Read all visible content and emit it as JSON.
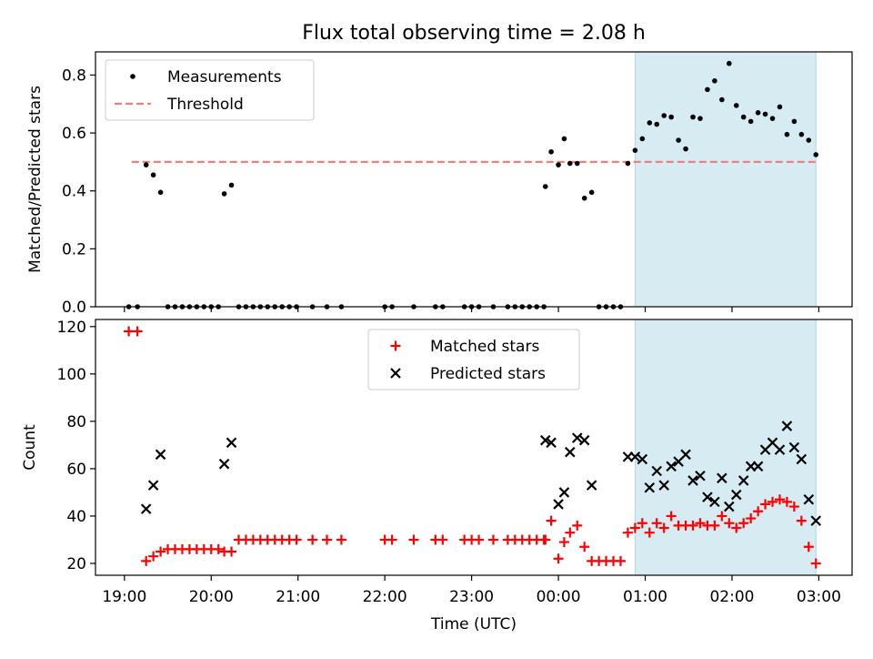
{
  "chart_data": {
    "title": "Flux total observing time = 2.08 h",
    "xlabel": "Time (UTC)",
    "x_ticks": [
      {
        "time": "19:00",
        "label": "19:00"
      },
      {
        "time": "20:00",
        "label": "20:00"
      },
      {
        "time": "21:00",
        "label": "21:00"
      },
      {
        "time": "22:00",
        "label": "22:00"
      },
      {
        "time": "23:00",
        "label": "23:00"
      },
      {
        "time": "00:00",
        "label": "00:00"
      },
      {
        "time": "01:00",
        "label": "01:00"
      },
      {
        "time": "02:00",
        "label": "02:00"
      },
      {
        "time": "03:00",
        "label": "03:00"
      }
    ],
    "xlim": [
      "18:40",
      "03:23"
    ],
    "shaded_interval": {
      "start": "00:53",
      "end": "02:58",
      "color": "#add8e6"
    },
    "panels": [
      {
        "type": "scatter",
        "ylabel": "Matched/Predicted stars",
        "ylim": [
          0,
          0.88
        ],
        "yticks": [
          "0.0",
          "0.2",
          "0.4",
          "0.6",
          "0.8"
        ],
        "legend_position": "upper left",
        "series": [
          {
            "name": "Measurements",
            "marker": "dot",
            "color": "#000000",
            "points": [
              [
                "19:03",
                0
              ],
              [
                "19:09",
                0
              ],
              [
                "19:15",
                0.49
              ],
              [
                "19:20",
                0.455
              ],
              [
                "19:25",
                0.395
              ],
              [
                "19:30",
                0
              ],
              [
                "19:35",
                0
              ],
              [
                "19:40",
                0
              ],
              [
                "19:45",
                0
              ],
              [
                "19:50",
                0
              ],
              [
                "19:55",
                0
              ],
              [
                "20:00",
                0
              ],
              [
                "20:05",
                0
              ],
              [
                "20:09",
                0.39
              ],
              [
                "20:14",
                0.42
              ],
              [
                "20:19",
                0
              ],
              [
                "20:24",
                0
              ],
              [
                "20:29",
                0
              ],
              [
                "20:34",
                0
              ],
              [
                "20:39",
                0
              ],
              [
                "20:44",
                0
              ],
              [
                "20:49",
                0
              ],
              [
                "20:54",
                0
              ],
              [
                "20:59",
                0
              ],
              [
                "21:10",
                0
              ],
              [
                "21:20",
                0
              ],
              [
                "21:30",
                0
              ],
              [
                "22:00",
                0
              ],
              [
                "22:05",
                0
              ],
              [
                "22:20",
                0
              ],
              [
                "22:35",
                0
              ],
              [
                "22:40",
                0
              ],
              [
                "22:55",
                0
              ],
              [
                "23:00",
                0
              ],
              [
                "23:05",
                0
              ],
              [
                "23:15",
                0
              ],
              [
                "23:25",
                0
              ],
              [
                "23:30",
                0
              ],
              [
                "23:35",
                0
              ],
              [
                "23:40",
                0
              ],
              [
                "23:45",
                0
              ],
              [
                "23:50",
                0
              ],
              [
                "23:51",
                0.415
              ],
              [
                "23:55",
                0.535
              ],
              [
                "00:00",
                0.49
              ],
              [
                "00:04",
                0.58
              ],
              [
                "00:08",
                0.495
              ],
              [
                "00:13",
                0.495
              ],
              [
                "00:18",
                0.375
              ],
              [
                "00:23",
                0.395
              ],
              [
                "00:28",
                0
              ],
              [
                "00:33",
                0
              ],
              [
                "00:38",
                0
              ],
              [
                "00:43",
                0
              ],
              [
                "00:48",
                0.495
              ],
              [
                "00:53",
                0.54
              ],
              [
                "00:58",
                0.58
              ],
              [
                "01:03",
                0.635
              ],
              [
                "01:08",
                0.63
              ],
              [
                "01:13",
                0.66
              ],
              [
                "01:18",
                0.655
              ],
              [
                "01:23",
                0.575
              ],
              [
                "01:28",
                0.545
              ],
              [
                "01:33",
                0.655
              ],
              [
                "01:38",
                0.65
              ],
              [
                "01:43",
                0.75
              ],
              [
                "01:48",
                0.78
              ],
              [
                "01:53",
                0.715
              ],
              [
                "01:58",
                0.84
              ],
              [
                "02:03",
                0.695
              ],
              [
                "02:08",
                0.655
              ],
              [
                "02:13",
                0.64
              ],
              [
                "02:18",
                0.67
              ],
              [
                "02:23",
                0.665
              ],
              [
                "02:28",
                0.65
              ],
              [
                "02:33",
                0.69
              ],
              [
                "02:38",
                0.595
              ],
              [
                "02:43",
                0.64
              ],
              [
                "02:48",
                0.595
              ],
              [
                "02:53",
                0.575
              ],
              [
                "02:58",
                0.525
              ]
            ]
          },
          {
            "name": "Threshold",
            "type": "line",
            "style": "dashed",
            "color": "#f08080",
            "x_range": [
              "19:05",
              "02:58"
            ],
            "value": 0.5
          }
        ]
      },
      {
        "type": "scatter",
        "ylabel": "Count",
        "ylim": [
          15,
          123
        ],
        "yticks": [
          "20",
          "40",
          "60",
          "80",
          "100",
          "120"
        ],
        "legend_position": "upper center",
        "series": [
          {
            "name": "Matched stars",
            "marker": "plus",
            "color": "#ff0000",
            "points": [
              [
                "19:03",
                118
              ],
              [
                "19:09",
                118
              ],
              [
                "19:15",
                21
              ],
              [
                "19:20",
                23
              ],
              [
                "19:25",
                25
              ],
              [
                "19:30",
                26
              ],
              [
                "19:35",
                26
              ],
              [
                "19:40",
                26
              ],
              [
                "19:45",
                26
              ],
              [
                "19:50",
                26
              ],
              [
                "19:55",
                26
              ],
              [
                "20:00",
                26
              ],
              [
                "20:05",
                26
              ],
              [
                "20:09",
                25
              ],
              [
                "20:14",
                25
              ],
              [
                "20:19",
                30
              ],
              [
                "20:24",
                30
              ],
              [
                "20:29",
                30
              ],
              [
                "20:34",
                30
              ],
              [
                "20:39",
                30
              ],
              [
                "20:44",
                30
              ],
              [
                "20:49",
                30
              ],
              [
                "20:54",
                30
              ],
              [
                "20:59",
                30
              ],
              [
                "21:10",
                30
              ],
              [
                "21:20",
                30
              ],
              [
                "21:30",
                30
              ],
              [
                "22:00",
                30
              ],
              [
                "22:05",
                30
              ],
              [
                "22:20",
                30
              ],
              [
                "22:35",
                30
              ],
              [
                "22:40",
                30
              ],
              [
                "22:55",
                30
              ],
              [
                "23:00",
                30
              ],
              [
                "23:05",
                30
              ],
              [
                "23:15",
                30
              ],
              [
                "23:25",
                30
              ],
              [
                "23:30",
                30
              ],
              [
                "23:35",
                30
              ],
              [
                "23:40",
                30
              ],
              [
                "23:45",
                30
              ],
              [
                "23:50",
                30
              ],
              [
                "23:51",
                30
              ],
              [
                "23:55",
                38
              ],
              [
                "00:00",
                22
              ],
              [
                "00:04",
                29
              ],
              [
                "00:08",
                33
              ],
              [
                "00:13",
                36
              ],
              [
                "00:18",
                27
              ],
              [
                "00:23",
                21
              ],
              [
                "00:28",
                21
              ],
              [
                "00:33",
                21
              ],
              [
                "00:38",
                21
              ],
              [
                "00:43",
                21
              ],
              [
                "00:48",
                33
              ],
              [
                "00:53",
                35
              ],
              [
                "00:58",
                37
              ],
              [
                "01:03",
                33
              ],
              [
                "01:08",
                37
              ],
              [
                "01:13",
                35
              ],
              [
                "01:18",
                40
              ],
              [
                "01:23",
                36
              ],
              [
                "01:28",
                36
              ],
              [
                "01:33",
                36
              ],
              [
                "01:38",
                37
              ],
              [
                "01:43",
                36
              ],
              [
                "01:48",
                36
              ],
              [
                "01:53",
                40
              ],
              [
                "01:58",
                37
              ],
              [
                "02:03",
                35
              ],
              [
                "02:08",
                37
              ],
              [
                "02:13",
                39
              ],
              [
                "02:18",
                42
              ],
              [
                "02:23",
                45
              ],
              [
                "02:28",
                46
              ],
              [
                "02:33",
                47
              ],
              [
                "02:38",
                46
              ],
              [
                "02:43",
                44
              ],
              [
                "02:48",
                38
              ],
              [
                "02:53",
                27
              ],
              [
                "02:58",
                20
              ]
            ]
          },
          {
            "name": "Predicted stars",
            "marker": "x",
            "color": "#000000",
            "points": [
              [
                "19:15",
                43
              ],
              [
                "19:20",
                53
              ],
              [
                "19:25",
                66
              ],
              [
                "20:09",
                62
              ],
              [
                "20:14",
                71
              ],
              [
                "23:51",
                72
              ],
              [
                "23:55",
                71
              ],
              [
                "00:00",
                45
              ],
              [
                "00:04",
                50
              ],
              [
                "00:08",
                67
              ],
              [
                "00:13",
                73
              ],
              [
                "00:18",
                72
              ],
              [
                "00:23",
                53
              ],
              [
                "00:48",
                65
              ],
              [
                "00:53",
                65
              ],
              [
                "00:58",
                64
              ],
              [
                "01:03",
                52
              ],
              [
                "01:08",
                59
              ],
              [
                "01:13",
                53
              ],
              [
                "01:18",
                61
              ],
              [
                "01:23",
                63
              ],
              [
                "01:28",
                66
              ],
              [
                "01:33",
                55
              ],
              [
                "01:38",
                57
              ],
              [
                "01:43",
                48
              ],
              [
                "01:48",
                46
              ],
              [
                "01:53",
                56
              ],
              [
                "01:58",
                44
              ],
              [
                "02:03",
                49
              ],
              [
                "02:08",
                55
              ],
              [
                "02:13",
                61
              ],
              [
                "02:18",
                61
              ],
              [
                "02:23",
                68
              ],
              [
                "02:28",
                71
              ],
              [
                "02:33",
                68
              ],
              [
                "02:38",
                78
              ],
              [
                "02:43",
                69
              ],
              [
                "02:48",
                64
              ],
              [
                "02:53",
                47
              ],
              [
                "02:58",
                38
              ]
            ]
          }
        ]
      }
    ]
  }
}
